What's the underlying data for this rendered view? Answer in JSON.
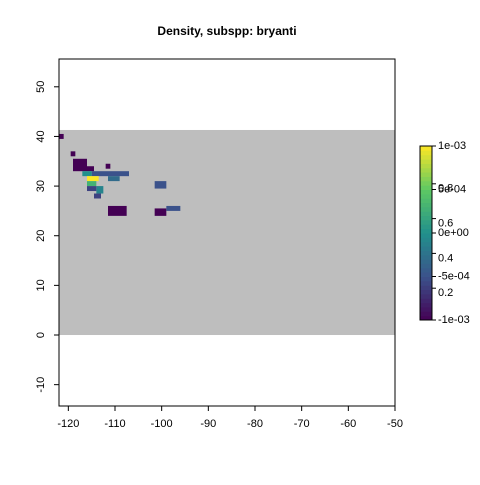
{
  "chart_data": {
    "type": "raster",
    "title": "Density, subspp: bryanti",
    "xlim": [
      -122,
      -50
    ],
    "ylim": [
      -14.3,
      55.6
    ],
    "xticks": [
      -120,
      -110,
      -100,
      -90,
      -80,
      -70,
      -60,
      -50
    ],
    "yticks": [
      -10,
      0,
      10,
      20,
      30,
      40,
      50
    ],
    "raster_extent": {
      "x": [
        -122,
        -50
      ],
      "y": [
        0,
        41.3
      ],
      "color": "#bebebe"
    },
    "colormap": [
      "#440154",
      "#3b528b",
      "#21908c",
      "#5dc863",
      "#fde725"
    ],
    "colorbar_lim": [
      -0.001,
      0.001
    ],
    "colorbar_ticks": [
      {
        "value": 0.001,
        "label": "1e-03"
      },
      {
        "value": 0.0005,
        "label": "5e-04"
      },
      {
        "value": 0,
        "label": "0e+00"
      },
      {
        "value": -0.0005,
        "label": "-5e-04"
      },
      {
        "value": -0.001,
        "label": "-1e-03"
      }
    ],
    "colorbar_lim2": [
      0,
      1
    ],
    "colorbar_ticks2": [
      0.8,
      0.6,
      0.4,
      0.2
    ],
    "cells": [
      {
        "x": [
          -122,
          -121
        ],
        "y": [
          39.5,
          40.5
        ],
        "value": -0.001
      },
      {
        "x": [
          -119.5,
          -118.5
        ],
        "y": [
          36,
          37
        ],
        "value": -0.001
      },
      {
        "x": [
          -119,
          -116
        ],
        "y": [
          33,
          35.5
        ],
        "value": -0.001
      },
      {
        "x": [
          -116,
          -114.5
        ],
        "y": [
          33,
          34
        ],
        "value": -0.001
      },
      {
        "x": [
          -112,
          -111
        ],
        "y": [
          33.5,
          34.5
        ],
        "value": -0.001
      },
      {
        "x": [
          -115,
          -107
        ],
        "y": [
          32,
          33
        ],
        "value": -0.0005
      },
      {
        "x": [
          -117,
          -115
        ],
        "y": [
          32,
          33
        ],
        "value": 0
      },
      {
        "x": [
          -116,
          -113.5
        ],
        "y": [
          31,
          32
        ],
        "value": 0.001
      },
      {
        "x": [
          -116,
          -114
        ],
        "y": [
          30,
          31
        ],
        "value": 0.0003
      },
      {
        "x": [
          -111.5,
          -109
        ],
        "y": [
          31,
          32
        ],
        "value": -0.0003
      },
      {
        "x": [
          -114,
          -112.5
        ],
        "y": [
          28.5,
          30
        ],
        "value": -0.0001
      },
      {
        "x": [
          -116,
          -114
        ],
        "y": [
          29,
          30
        ],
        "value": -0.0006
      },
      {
        "x": [
          -114.5,
          -113
        ],
        "y": [
          27.5,
          28.5
        ],
        "value": -0.0006
      },
      {
        "x": [
          -111.5,
          -107.5
        ],
        "y": [
          24,
          26
        ],
        "value": -0.001
      },
      {
        "x": [
          -101.5,
          -99
        ],
        "y": [
          29.5,
          31
        ],
        "value": -0.0005
      },
      {
        "x": [
          -101.5,
          -99
        ],
        "y": [
          24,
          25.5
        ],
        "value": -0.001
      },
      {
        "x": [
          -99,
          -96
        ],
        "y": [
          25,
          26
        ],
        "value": -0.0005
      }
    ]
  }
}
